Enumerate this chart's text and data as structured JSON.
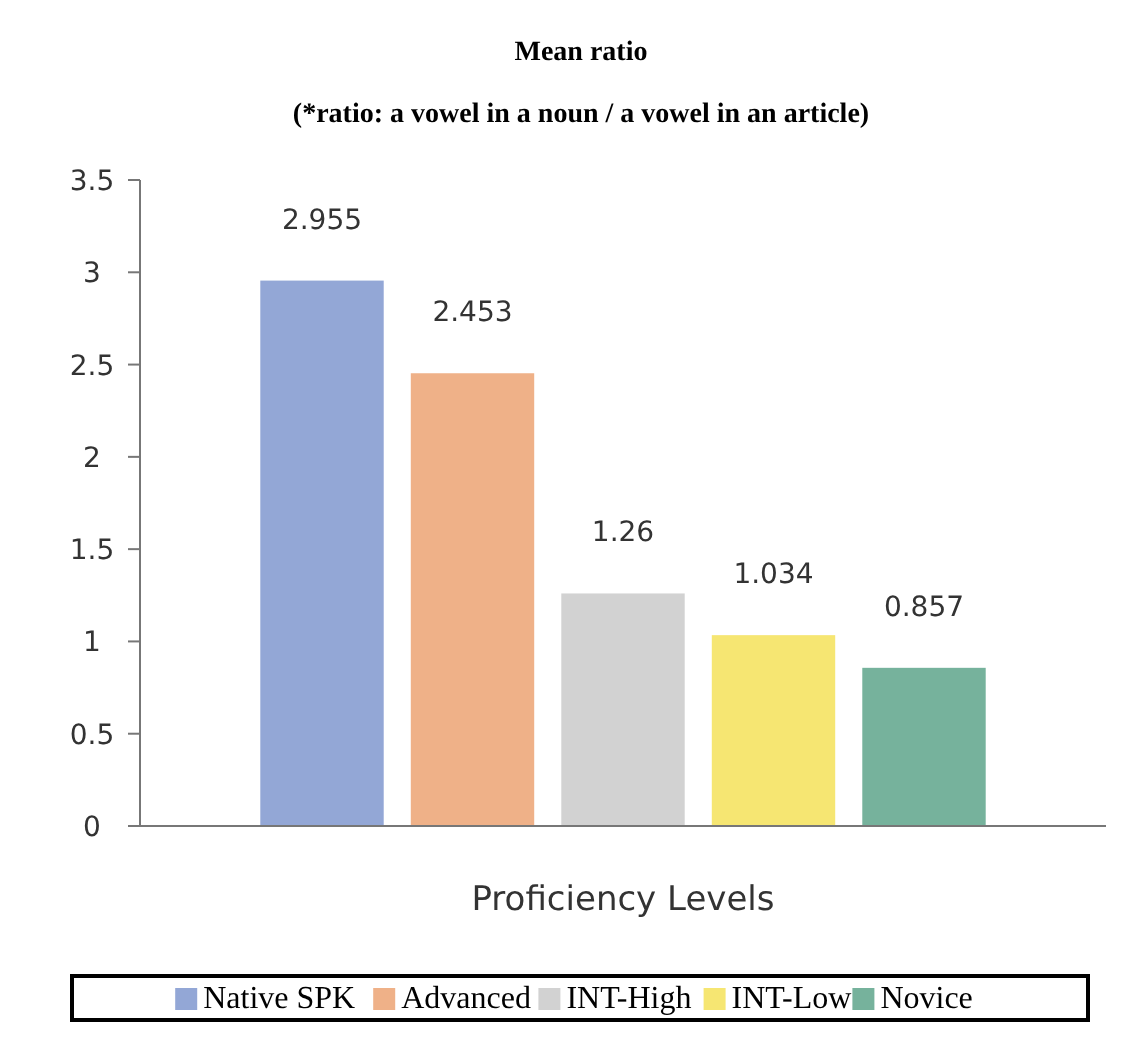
{
  "chart_data": {
    "type": "bar",
    "title": "Mean ratio",
    "subtitle": "(*ratio: a vowel in a noun / a vowel in an article)",
    "xlabel": "Proficiency Levels",
    "categories": [
      null
    ],
    "series": [
      {
        "name": "Native SPK",
        "color": "#93a7d6",
        "values": [
          2.955
        ]
      },
      {
        "name": "Advanced",
        "color": "#efb188",
        "values": [
          2.453
        ]
      },
      {
        "name": "INT-High",
        "color": "#d2d2d2",
        "values": [
          1.26
        ]
      },
      {
        "name": "INT-Low",
        "color": "#f6e672",
        "values": [
          1.034
        ]
      },
      {
        "name": "Novice",
        "color": "#76b29c",
        "values": [
          0.857
        ]
      }
    ],
    "ylim": [
      0,
      3.5
    ],
    "yticks": [
      0,
      0.5,
      1,
      1.5,
      2,
      2.5,
      3,
      3.5
    ],
    "data_labels": true,
    "grid": false,
    "legend": "bottom"
  }
}
